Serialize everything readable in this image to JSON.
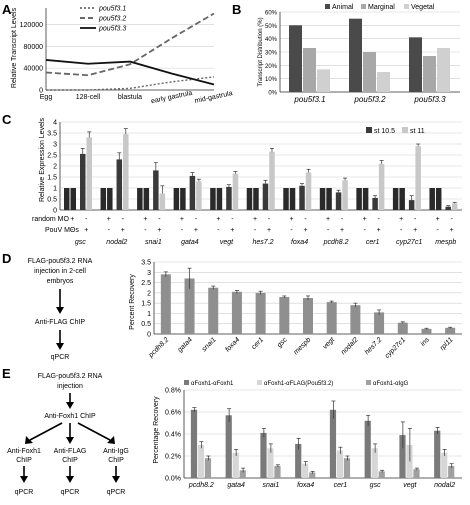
{
  "panels": {
    "A": {
      "label": "A",
      "ylabel": "Relative Transcript Levels",
      "yticks": [
        "0",
        "40000",
        "80000",
        "120000"
      ],
      "stages": [
        "Egg",
        "128-cell",
        "blastula",
        "early gastrula",
        "mid-gastrula"
      ],
      "legend": [
        "pou5f3.1",
        "pou5f3.2",
        "pou5f3.3"
      ]
    },
    "B": {
      "label": "B",
      "ylabel": "Transcript Distribution (%)",
      "yticks": [
        "0%",
        "10%",
        "20%",
        "30%",
        "40%",
        "50%",
        "60%"
      ],
      "legend": [
        "Animal",
        "Marginal",
        "Vegetal"
      ],
      "colors": [
        "#4a4a4a",
        "#a8a8a8",
        "#d0d0d0"
      ]
    },
    "C": {
      "label": "C",
      "ylabel": "Relative Expression Levels",
      "yticks": [
        "0",
        "0.5",
        "1",
        "1.5",
        "2",
        "2.5",
        "3",
        "3.5",
        "4"
      ],
      "legend": [
        "st 10.5",
        "st 11"
      ],
      "colors": [
        "#3a3a3a",
        "#c8c8c8",
        "#2a2a2a"
      ],
      "row1_label": "random MO",
      "row2_label": "PouV MOs",
      "plus": "+",
      "minus": "-"
    },
    "D": {
      "label": "D",
      "flow": [
        "FLAG-pou5f3.2 RNA",
        "injection in 2-cell",
        "embryos",
        "Anti-FLAG ChIP",
        "qPCR"
      ],
      "ylabel": "Percent Recovery",
      "yticks": [
        "0",
        "0.5",
        "1",
        "1.5",
        "2",
        "2.5",
        "3",
        "3.5"
      ],
      "color": "#8f8f8f"
    },
    "E": {
      "label": "E",
      "flow_top": [
        "FLAG-pou5f3.2 RNA",
        "injection"
      ],
      "flow_mid": "Anti-Foxh1 ChIP",
      "branches": [
        [
          "Anti-Foxh1",
          "ChIP"
        ],
        [
          "Anti-FLAG",
          "ChIP"
        ],
        [
          "Anti-IgG",
          "ChIP"
        ]
      ],
      "qpcr": "qPCR",
      "ylabel": "Percentage Recovery",
      "yticks": [
        "0.0%",
        "0.2%",
        "0.4%",
        "0.6%",
        "0.8%"
      ],
      "legend": [
        "αFoxh1-αFoxh1",
        "αFoxh1-αFLAG(Pou5f3.2)",
        "αFoxh1-αIgG"
      ],
      "colors": [
        "#7a7a7a",
        "#d6d6d6",
        "#a0a0a0"
      ]
    }
  },
  "chart_data": [
    {
      "type": "line",
      "panel": "A",
      "x": [
        "Egg",
        "128-cell",
        "blastula",
        "early gastrula",
        "mid-gastrula"
      ],
      "ylim": [
        0,
        150000
      ],
      "ylabel": "Relative Transcript Levels",
      "series": [
        {
          "name": "pou5f3.1",
          "values": [
            0,
            0,
            3000,
            15000,
            24000
          ]
        },
        {
          "name": "pou5f3.2",
          "values": [
            32000,
            27000,
            47000,
            95000,
            140000
          ]
        },
        {
          "name": "pou5f3.3",
          "values": [
            55000,
            48000,
            52000,
            30000,
            10000
          ]
        }
      ]
    },
    {
      "type": "bar",
      "panel": "B",
      "categories": [
        "pou5f3.1",
        "pou5f3.2",
        "pou5f3.3"
      ],
      "ylim": [
        0,
        60
      ],
      "ylabel": "Transcript Distribution (%)",
      "series": [
        {
          "name": "Animal",
          "values": [
            50,
            55,
            41
          ]
        },
        {
          "name": "Marginal",
          "values": [
            33,
            30,
            27
          ]
        },
        {
          "name": "Vegetal",
          "values": [
            17,
            15,
            33
          ]
        }
      ]
    },
    {
      "type": "bar",
      "panel": "C",
      "categories": [
        "gsc",
        "nodal2",
        "snai1",
        "gata4",
        "vegt",
        "hes7.2",
        "foxa4",
        "pcdh8.2",
        "cer1",
        "cyp27c1",
        "mespb"
      ],
      "ylim": [
        0,
        4
      ],
      "ylabel": "Relative Expression Levels",
      "series": [
        {
          "values": [
            1,
            1,
            1,
            1,
            1,
            1,
            1,
            1,
            1,
            1,
            1
          ]
        },
        {
          "values": [
            1,
            1,
            1,
            1,
            1,
            1,
            1,
            1,
            1,
            1,
            1
          ]
        },
        {
          "name": "st 10.5",
          "values": [
            2.55,
            2.3,
            1.8,
            1.55,
            1.05,
            1.2,
            1.1,
            0.8,
            0.55,
            0.45,
            0.15
          ]
        },
        {
          "name": "st 11",
          "values": [
            3.3,
            3.45,
            0.75,
            1.3,
            1.65,
            2.65,
            1.7,
            1.35,
            2.1,
            2.9,
            0.3
          ]
        }
      ],
      "errors_10_5": [
        0.25,
        0.3,
        0.35,
        0.15,
        0.1,
        0.15,
        0.1,
        0.1,
        0.1,
        0.2,
        0.05
      ],
      "errors_11": [
        0.25,
        0.25,
        0.35,
        0.1,
        0.1,
        0.15,
        0.15,
        0.1,
        0.15,
        0.1,
        0.05
      ]
    },
    {
      "type": "bar",
      "panel": "D",
      "categories": [
        "pcdh8.2",
        "gata4",
        "snai1",
        "foxa4",
        "cer1",
        "gsc",
        "mespb",
        "vegt",
        "nodal2",
        "hes7.2",
        "cyp27c1",
        "ins",
        "rpl11"
      ],
      "ylim": [
        0,
        3.5
      ],
      "ylabel": "Percent Recovery",
      "values": [
        2.9,
        2.7,
        2.25,
        2.05,
        2.0,
        1.8,
        1.75,
        1.55,
        1.4,
        1.05,
        0.55,
        0.25,
        0.3
      ],
      "errors": [
        0.12,
        0.5,
        0.08,
        0.07,
        0.08,
        0.05,
        0.1,
        0.05,
        0.1,
        0.12,
        0.04,
        0.03,
        0.03
      ]
    },
    {
      "type": "bar",
      "panel": "E",
      "categories": [
        "pcdh8.2",
        "gata4",
        "snai1",
        "foxa4",
        "cer1",
        "gsc",
        "vegt",
        "nodal2"
      ],
      "ylim": [
        0,
        0.8
      ],
      "ylabel": "Percentage Recovery",
      "series": [
        {
          "name": "αFoxh1-αFoxh1",
          "values": [
            0.62,
            0.57,
            0.41,
            0.31,
            0.62,
            0.52,
            0.39,
            0.43
          ]
        },
        {
          "name": "αFoxh1-αFLAG(Pou5f3.2)",
          "values": [
            0.3,
            0.23,
            0.27,
            0.13,
            0.25,
            0.27,
            0.3,
            0.23
          ]
        },
        {
          "name": "αFoxh1-αIgG",
          "values": [
            0.18,
            0.07,
            0.11,
            0.05,
            0.18,
            0.06,
            0.08,
            0.11
          ]
        }
      ],
      "errors": [
        [
          0.02,
          0.06,
          0.04,
          0.05,
          0.08,
          0.05,
          0.12,
          0.03
        ],
        [
          0.03,
          0.03,
          0.04,
          0.02,
          0.03,
          0.04,
          0.15,
          0.03
        ],
        [
          0.02,
          0.02,
          0.01,
          0.01,
          0.02,
          0.01,
          0.01,
          0.02
        ]
      ]
    }
  ]
}
